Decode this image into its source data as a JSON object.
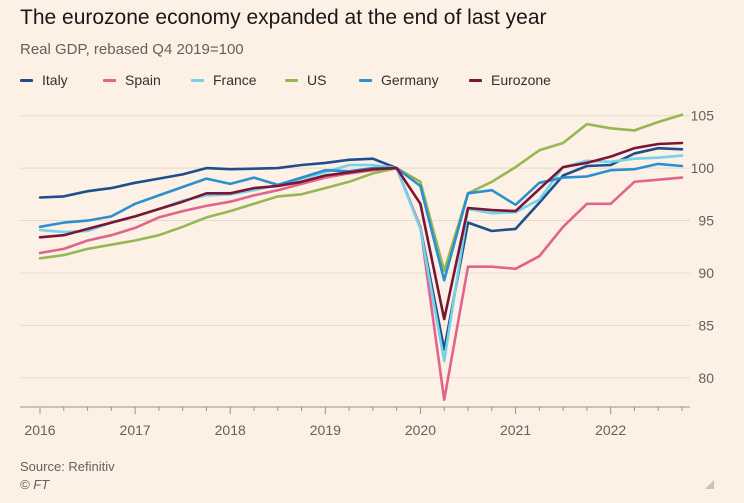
{
  "header": {
    "title": "The eurozone economy expanded at the end of last year",
    "subtitle": "Real GDP, rebased Q4 2019=100"
  },
  "footer": {
    "source": "Source: Refinitiv",
    "credit": "© FT"
  },
  "chart_data": {
    "type": "line",
    "title": "The eurozone economy expanded at the end of last year",
    "subtitle": "Real GDP, rebased Q4 2019=100",
    "xlabel": "",
    "ylabel": "",
    "x": [
      2016.0,
      2016.25,
      2016.5,
      2016.75,
      2017.0,
      2017.25,
      2017.5,
      2017.75,
      2018.0,
      2018.25,
      2018.5,
      2018.75,
      2019.0,
      2019.25,
      2019.5,
      2019.75,
      2020.0,
      2020.25,
      2020.5,
      2020.75,
      2021.0,
      2021.25,
      2021.5,
      2021.75,
      2022.0,
      2022.25,
      2022.5,
      2022.75
    ],
    "xlim": [
      2016,
      2022.75
    ],
    "x_ticks": [
      2016,
      2017,
      2018,
      2019,
      2020,
      2021,
      2022
    ],
    "x_tick_labels": [
      "2016",
      "2017",
      "2018",
      "2019",
      "2020",
      "2021",
      "2022"
    ],
    "ylim": [
      77.5,
      106.5
    ],
    "y_ticks": [
      80,
      85,
      90,
      95,
      100,
      105
    ],
    "y_tick_labels": [
      "80",
      "85",
      "90",
      "95",
      "100",
      "105"
    ],
    "grid": true,
    "legend_position": "top",
    "series": [
      {
        "name": "Italy",
        "color": "#1f4e8c",
        "values": [
          97.2,
          97.3,
          97.8,
          98.1,
          98.6,
          99.0,
          99.4,
          100.0,
          99.9,
          99.95,
          100.0,
          100.3,
          100.5,
          100.8,
          100.9,
          100.0,
          94.3,
          82.7,
          94.8,
          94.0,
          94.2,
          96.7,
          99.3,
          100.2,
          100.3,
          101.4,
          101.9,
          101.8
        ]
      },
      {
        "name": "Spain",
        "color": "#e0648b",
        "values": [
          91.9,
          92.3,
          93.1,
          93.6,
          94.3,
          95.3,
          95.9,
          96.4,
          96.8,
          97.4,
          97.9,
          98.5,
          99.1,
          99.5,
          99.8,
          100.0,
          94.4,
          77.9,
          90.6,
          90.6,
          90.4,
          91.6,
          94.4,
          96.6,
          96.6,
          98.7,
          98.9,
          99.1
        ]
      },
      {
        "name": "France",
        "color": "#74d2ea",
        "values": [
          94.1,
          93.9,
          94.0,
          94.8,
          95.4,
          96.1,
          96.9,
          97.4,
          97.5,
          97.9,
          98.4,
          99.0,
          99.6,
          100.3,
          100.3,
          100.0,
          94.2,
          81.6,
          96.1,
          95.7,
          95.8,
          97.0,
          100.1,
          100.7,
          100.6,
          100.9,
          101.0,
          101.2
        ]
      },
      {
        "name": "US",
        "color": "#96b753",
        "values": [
          91.4,
          91.7,
          92.3,
          92.7,
          93.1,
          93.6,
          94.4,
          95.3,
          95.9,
          96.6,
          97.3,
          97.5,
          98.1,
          98.7,
          99.5,
          100.0,
          98.7,
          90.2,
          97.6,
          98.7,
          100.1,
          101.7,
          102.4,
          104.2,
          103.8,
          103.6,
          104.4,
          105.1
        ]
      },
      {
        "name": "Germany",
        "color": "#2b8fd0",
        "values": [
          94.4,
          94.8,
          95.0,
          95.4,
          96.6,
          97.4,
          98.2,
          99.0,
          98.5,
          99.1,
          98.4,
          99.1,
          99.8,
          99.7,
          100.0,
          100.0,
          98.3,
          89.3,
          97.6,
          97.9,
          96.5,
          98.6,
          99.1,
          99.2,
          99.8,
          99.9,
          100.4,
          100.2
        ]
      },
      {
        "name": "Eurozone",
        "color": "#7a1536",
        "values": [
          93.4,
          93.6,
          94.2,
          94.8,
          95.4,
          96.1,
          96.8,
          97.6,
          97.6,
          98.1,
          98.3,
          98.7,
          99.3,
          99.6,
          99.9,
          100.0,
          96.6,
          85.6,
          96.2,
          96.0,
          95.9,
          98.0,
          100.1,
          100.5,
          101.1,
          101.9,
          102.3,
          102.4
        ]
      }
    ]
  }
}
